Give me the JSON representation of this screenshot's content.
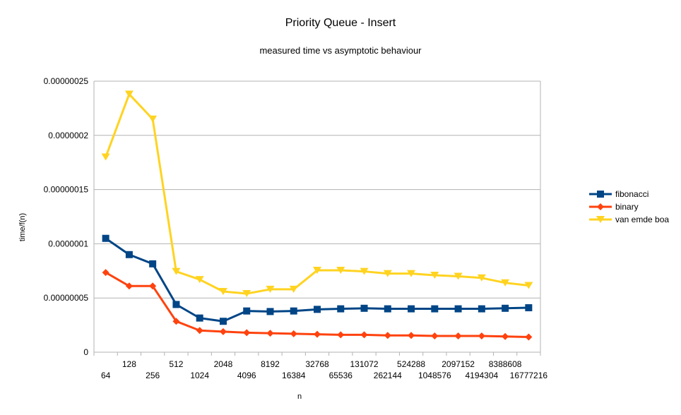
{
  "chart_data": {
    "type": "line",
    "title": "Priority Queue - Insert",
    "subtitle": "measured time vs asymptotic behaviour",
    "xlabel": "n",
    "ylabel": "time/f(n)",
    "ylim": [
      0,
      2.5e-07
    ],
    "yticks": [
      "0",
      "0.00000005",
      "0.0000001",
      "0.00000015",
      "0.0000002",
      "0.00000025"
    ],
    "ytick_values": [
      0,
      5e-08,
      1e-07,
      1.5e-07,
      2e-07,
      2.5e-07
    ],
    "grid": true,
    "legend_position": "right",
    "categories": [
      "64",
      "128",
      "256",
      "512",
      "1024",
      "2048",
      "4096",
      "8192",
      "16384",
      "32768",
      "65536",
      "131072",
      "262144",
      "524288",
      "1048576",
      "2097152",
      "4194304",
      "8388608",
      "16777216"
    ],
    "series": [
      {
        "name": "fibonacci",
        "color": "#004586",
        "marker": "square",
        "values": [
          1.05e-07,
          9e-08,
          8.15e-08,
          4.4e-08,
          3.15e-08,
          2.85e-08,
          3.8e-08,
          3.75e-08,
          3.8e-08,
          3.95e-08,
          4e-08,
          4.05e-08,
          4e-08,
          4e-08,
          4e-08,
          4e-08,
          4e-08,
          4.05e-08,
          4.1e-08
        ]
      },
      {
        "name": "binary",
        "color": "#ff420e",
        "marker": "diamond",
        "values": [
          7.35e-08,
          6.1e-08,
          6.1e-08,
          2.85e-08,
          2e-08,
          1.9e-08,
          1.8e-08,
          1.75e-08,
          1.7e-08,
          1.65e-08,
          1.6e-08,
          1.6e-08,
          1.55e-08,
          1.55e-08,
          1.5e-08,
          1.5e-08,
          1.5e-08,
          1.45e-08,
          1.4e-08
        ]
      },
      {
        "name": "van emde boa",
        "color": "#ffd320",
        "marker": "triangle-down",
        "values": [
          1.8e-07,
          2.38e-07,
          2.15e-07,
          7.45e-08,
          6.7e-08,
          5.6e-08,
          5.4e-08,
          5.8e-08,
          5.8e-08,
          7.55e-08,
          7.55e-08,
          7.45e-08,
          7.25e-08,
          7.25e-08,
          7.1e-08,
          7e-08,
          6.85e-08,
          6.4e-08,
          6.15e-08
        ]
      }
    ]
  }
}
